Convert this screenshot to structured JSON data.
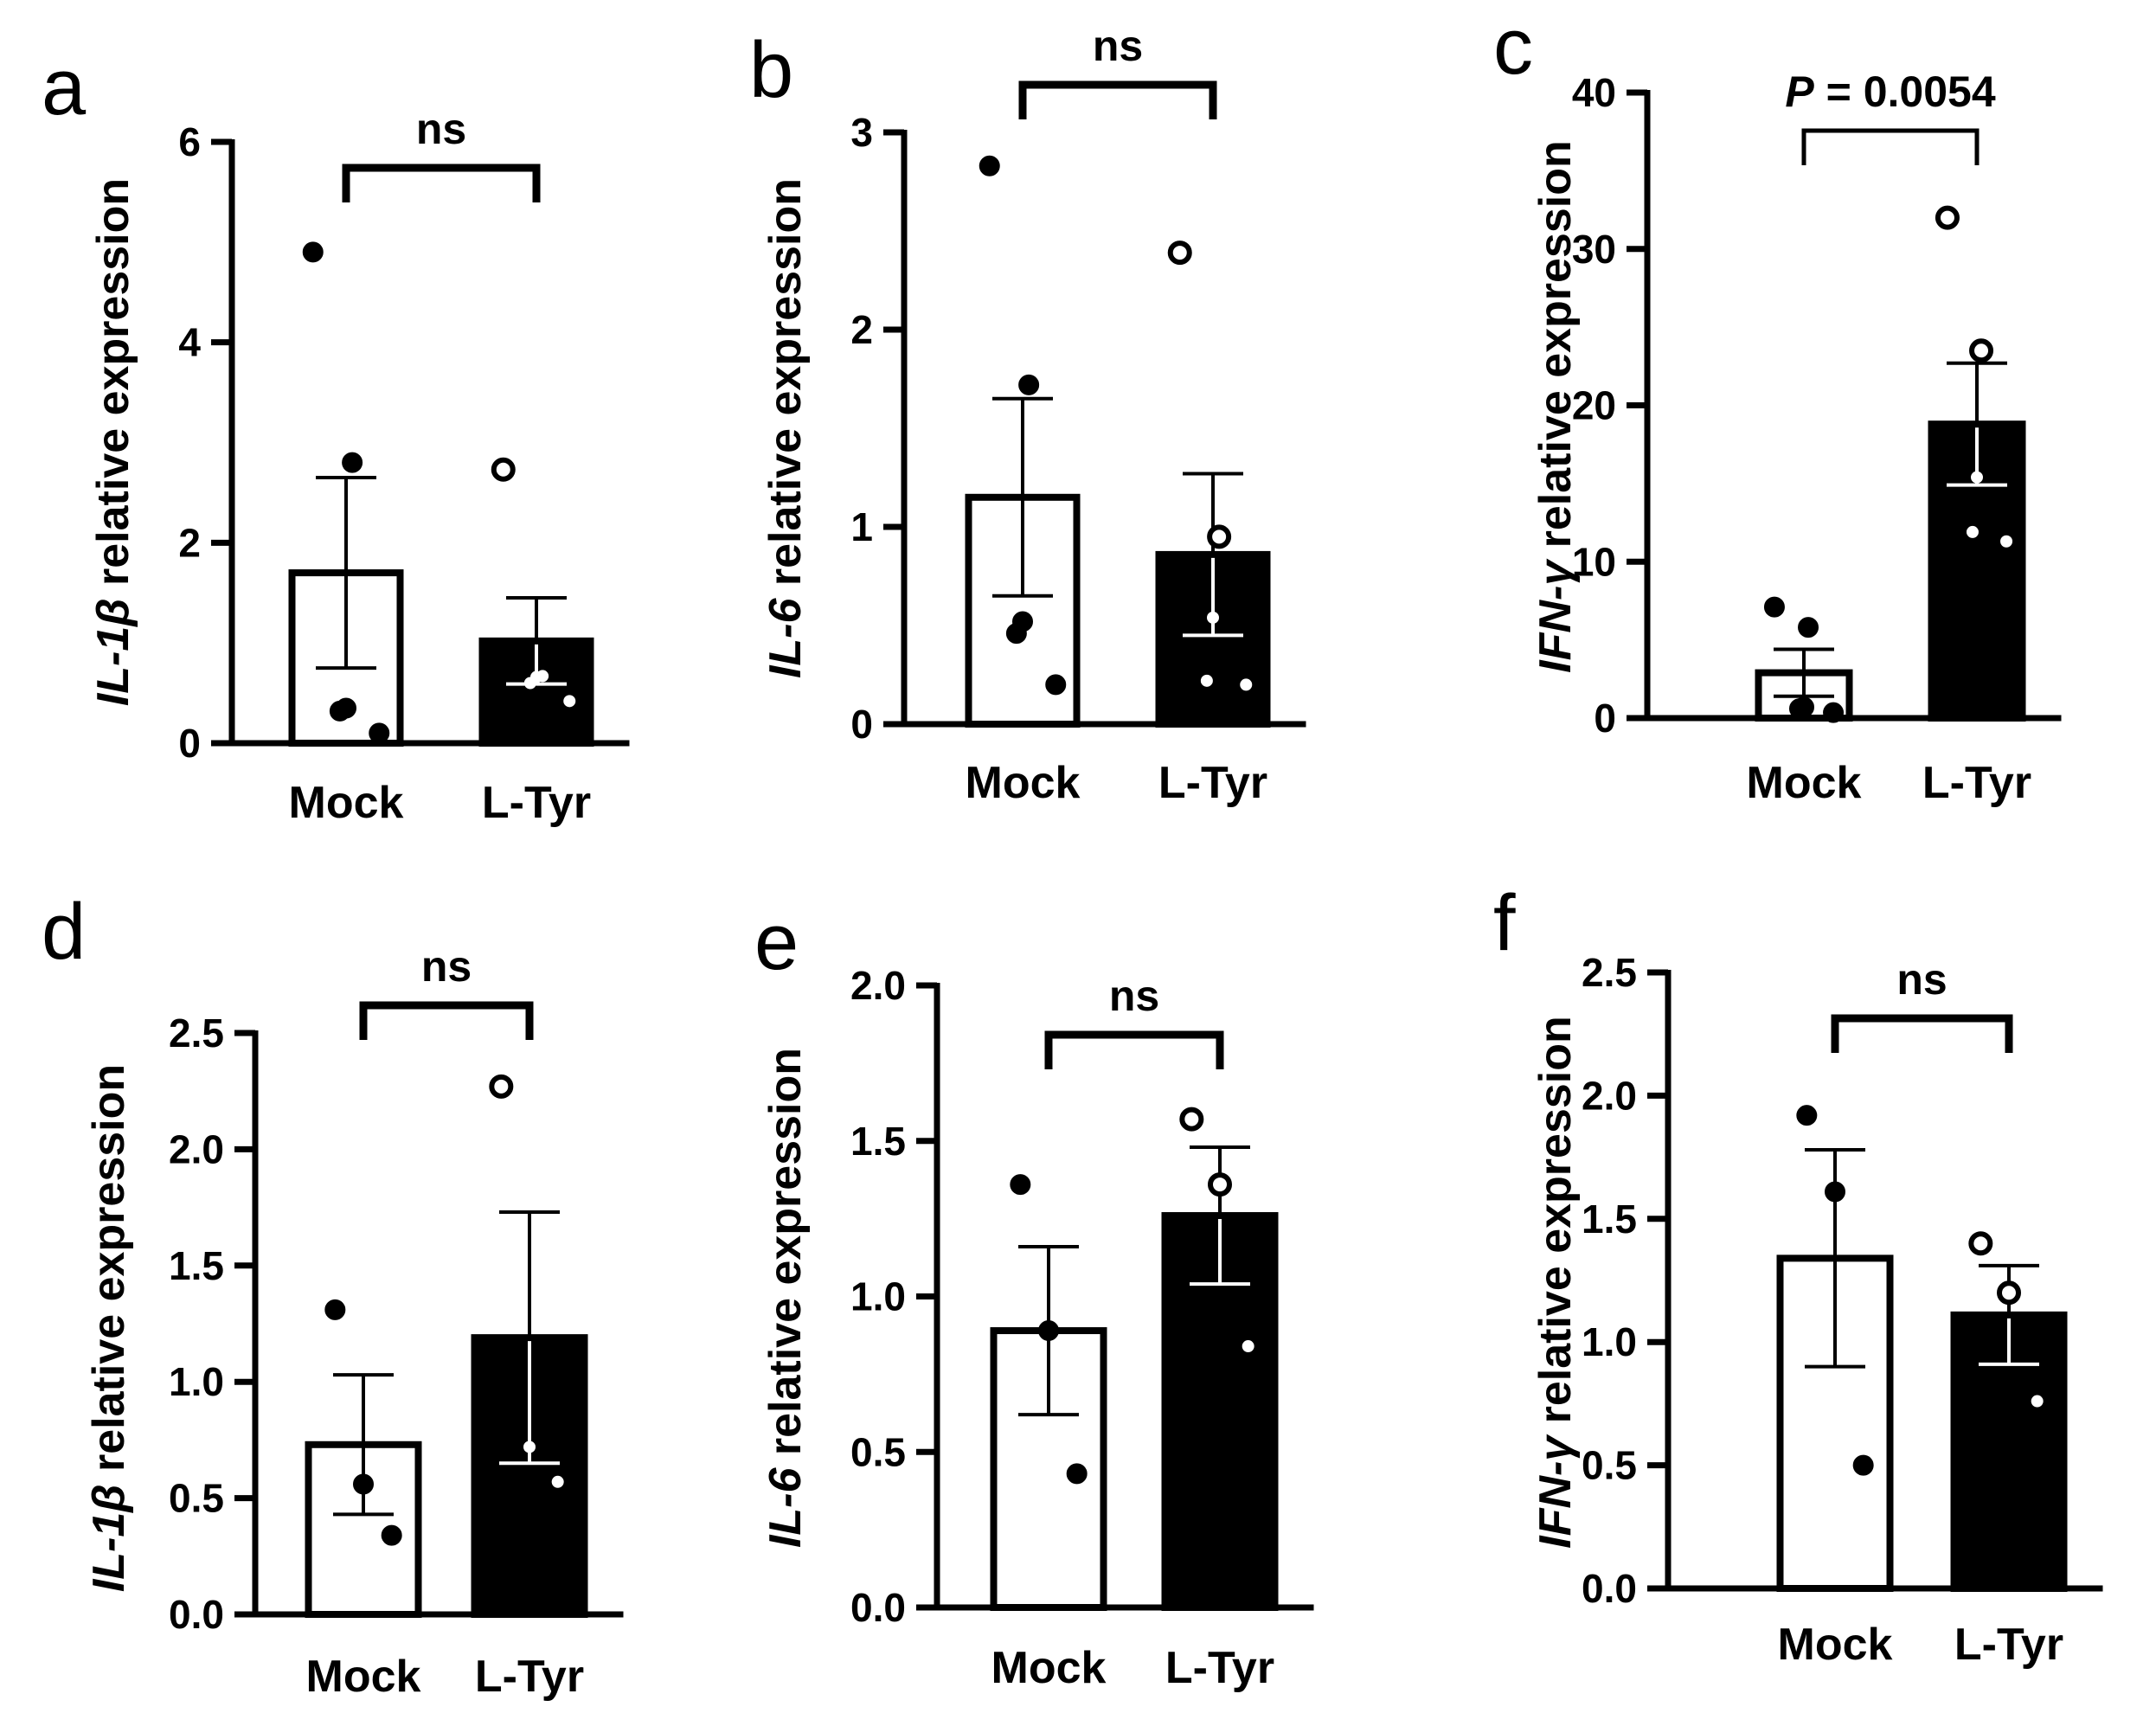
{
  "figure": {
    "panels": [
      {
        "letter": "a",
        "ylabel": {
          "gene": "IL-1β",
          "rest": " relative expression"
        },
        "ticks": [
          "0",
          "2",
          "4",
          "6"
        ],
        "significance": {
          "label": "ns"
        }
      },
      {
        "letter": "b",
        "ylabel": {
          "gene": "IL-6",
          "rest": " relative expression"
        },
        "ticks": [
          "0",
          "1",
          "2",
          "3"
        ],
        "significance": {
          "label": "ns"
        }
      },
      {
        "letter": "c",
        "ylabel": {
          "gene": "IFN-γ",
          "rest": " relative expression"
        },
        "ticks": [
          "0",
          "10",
          "20",
          "30",
          "40"
        ],
        "significance": {
          "label_italic": "P",
          "label_rest": " = 0.0054"
        }
      },
      {
        "letter": "d",
        "ylabel": {
          "gene": "IL-1β",
          "rest": " relative expression"
        },
        "ticks": [
          "0.0",
          "0.5",
          "1.0",
          "1.5",
          "2.0",
          "2.5"
        ],
        "significance": {
          "label": "ns"
        }
      },
      {
        "letter": "e",
        "ylabel": {
          "gene": "IL-6",
          "rest": " relative expression"
        },
        "ticks": [
          "0.0",
          "0.5",
          "1.0",
          "1.5",
          "2.0"
        ],
        "significance": {
          "label": "ns"
        }
      },
      {
        "letter": "f",
        "ylabel": {
          "gene": "IFN-γ",
          "rest": " relative expression"
        },
        "ticks": [
          "0.0",
          "0.5",
          "1.0",
          "1.5",
          "2.0",
          "2.5"
        ],
        "significance": {
          "label": "ns"
        }
      }
    ]
  },
  "chart_data": [
    {
      "type": "bar",
      "panel": "a",
      "categories": [
        "Mock",
        "L-Tyr"
      ],
      "ylabel": "IL-1β relative expression",
      "ylim": [
        0,
        6
      ],
      "series": [
        {
          "name": "Mock",
          "mean": 1.7,
          "sem": 0.95,
          "points": [
            4.9,
            2.8,
            0.35,
            0.32,
            0.1
          ],
          "fill": "#ffffff",
          "marker": "filled"
        },
        {
          "name": "L-Tyr",
          "mean": 1.02,
          "sem": 0.43,
          "points": [
            2.73,
            0.67,
            0.66,
            0.6,
            0.42
          ],
          "fill": "#000000",
          "marker": "open"
        }
      ],
      "significance": "ns"
    },
    {
      "type": "bar",
      "panel": "b",
      "categories": [
        "Mock",
        "L-Tyr"
      ],
      "ylabel": "IL-6 relative expression",
      "ylim": [
        0,
        3
      ],
      "series": [
        {
          "name": "Mock",
          "mean": 1.15,
          "sem": 0.5,
          "points": [
            2.83,
            1.72,
            0.52,
            0.46,
            0.2
          ],
          "fill": "#ffffff",
          "marker": "filled"
        },
        {
          "name": "L-Tyr",
          "mean": 0.86,
          "sem": 0.41,
          "points": [
            2.39,
            0.95,
            0.54,
            0.22,
            0.2
          ],
          "fill": "#000000",
          "marker": "open"
        }
      ],
      "significance": "ns"
    },
    {
      "type": "bar",
      "panel": "c",
      "categories": [
        "Mock",
        "L-Tyr"
      ],
      "ylabel": "IFN-γ relative expression",
      "ylim": [
        0,
        40
      ],
      "series": [
        {
          "name": "Mock",
          "mean": 2.9,
          "sem": 1.5,
          "points": [
            7.1,
            5.8,
            0.7,
            0.6,
            0.35
          ],
          "fill": "#ffffff",
          "marker": "filled"
        },
        {
          "name": "L-Tyr",
          "mean": 18.8,
          "sem": 3.9,
          "points": [
            32.0,
            23.5,
            15.4,
            11.9,
            11.3
          ],
          "fill": "#000000",
          "marker": "open"
        }
      ],
      "significance": "P = 0.0054"
    },
    {
      "type": "bar",
      "panel": "d",
      "categories": [
        "Mock",
        "L-Tyr"
      ],
      "ylabel": "IL-1β relative expression",
      "ylim": [
        0,
        2.5
      ],
      "series": [
        {
          "name": "Mock",
          "mean": 0.73,
          "sem": 0.3,
          "points": [
            1.31,
            0.56,
            0.34
          ],
          "fill": "#ffffff",
          "marker": "filled"
        },
        {
          "name": "L-Tyr",
          "mean": 1.19,
          "sem": 0.54,
          "points": [
            2.27,
            0.72,
            0.57
          ],
          "fill": "#000000",
          "marker": "open"
        }
      ],
      "significance": "ns"
    },
    {
      "type": "bar",
      "panel": "e",
      "categories": [
        "Mock",
        "L-Tyr"
      ],
      "ylabel": "IL-6 relative expression",
      "ylim": [
        0,
        2.0
      ],
      "series": [
        {
          "name": "Mock",
          "mean": 0.89,
          "sem": 0.27,
          "points": [
            1.36,
            0.89,
            0.43
          ],
          "fill": "#ffffff",
          "marker": "filled"
        },
        {
          "name": "L-Tyr",
          "mean": 1.26,
          "sem": 0.22,
          "points": [
            1.57,
            1.36,
            0.84
          ],
          "fill": "#000000",
          "marker": "open"
        }
      ],
      "significance": "ns"
    },
    {
      "type": "bar",
      "panel": "f",
      "categories": [
        "Mock",
        "L-Tyr"
      ],
      "ylabel": "IFN-γ relative expression",
      "ylim": [
        0,
        2.5
      ],
      "series": [
        {
          "name": "Mock",
          "mean": 1.34,
          "sem": 0.44,
          "points": [
            1.92,
            1.61,
            0.5
          ],
          "fill": "#ffffff",
          "marker": "filled"
        },
        {
          "name": "L-Tyr",
          "mean": 1.11,
          "sem": 0.2,
          "points": [
            1.4,
            1.2,
            0.76
          ],
          "fill": "#000000",
          "marker": "open"
        }
      ],
      "significance": "ns"
    }
  ]
}
